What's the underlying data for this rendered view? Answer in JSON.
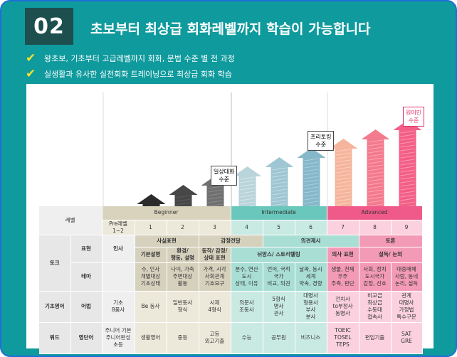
{
  "header": {
    "badge": "02",
    "title": "초보부터 최상급 회화레벨까지 학습이 가능합니다"
  },
  "bullets": [
    "왕초보, 기초부터 고급레벨까지 회화, 문법 수준 별 전 과정",
    "실생활과 유사한 실전회화 트레이닝으로 최상급 회화 학습"
  ],
  "callouts": {
    "daily": "일상대화\n수준",
    "free": "프리토킹\n수준",
    "native": "원어민\n수준"
  },
  "arrow_levels": [
    1,
    2,
    3,
    4,
    5,
    6,
    7,
    8,
    9
  ],
  "colors": {
    "frame": "#0f9a9d",
    "badge": "#1d4f4f",
    "beginner": "#d9d3bd",
    "intermediate": "#69c7bb",
    "advanced": "#f05a8a",
    "check": "#f3e22c"
  },
  "table": {
    "level_label": "레벨",
    "groups": {
      "beginner": "Beginner",
      "intermediate": "Intermediate",
      "advanced": "Advanced"
    },
    "levels": [
      "Pre레벨\n1~2",
      "1",
      "2",
      "3",
      "4",
      "5",
      "6",
      "7",
      "8",
      "9"
    ],
    "talk_label": "토크",
    "expression_label": "표현",
    "theme_label": "테마",
    "greeting": "인사",
    "fact_expression": "사실표현",
    "emotion_delivery": "감정전달",
    "opinion_presentation": "의견제시",
    "debate": "토론",
    "expr_row": [
      "기본설명",
      "환경/\n행동, 설명",
      "동작/ 감정/ 상태 표현",
      "뉘앙스/ 스토리텔링",
      "의사 표현",
      "설득/ 논의"
    ],
    "theme_row": [
      "수, 인사\n개별대상\n기초상태",
      "나이, 가족\n주변대상\n활동",
      "가격, 시각\n사회관계\n기호요구",
      "분수, 연산\n도시\n상태, 이유",
      "언어, 국적\n국가\n비교, 의견",
      "날짜, 동시\n세계\n약속, 경향",
      "생물, 천체\n우주\n추측, 판단",
      "사회, 정치\n도시국가\n감정, 선호",
      "대중매체\n사람, 동네\n논리, 설득"
    ],
    "basic_english_label": "기초영어",
    "grammar_label": "어법",
    "grammar_row": [
      "기초\n8품사",
      "Be 동사",
      "일반동사\n형식",
      "시제\n4형식",
      "의문사\n조동사",
      "5형식\n명사\n관사",
      "대명사\n형용사\n부사\n분사",
      "전치사\nto부정사\n동명사",
      "비교급\n최상급\n수동태\n접속사",
      "관계\n대명사\n가정법\n특수구문"
    ],
    "word_label": "워드",
    "vocab_label": "영단어",
    "vocab_row": [
      "주니어 기본\n주니어완성\n초등",
      "생활영어",
      "중등",
      "고등\n외고기출",
      "수능",
      "공무원",
      "비즈니스",
      "TOEIC\nTOSEL\nTEPS",
      "편입기출",
      "SAT\nGRE"
    ]
  }
}
